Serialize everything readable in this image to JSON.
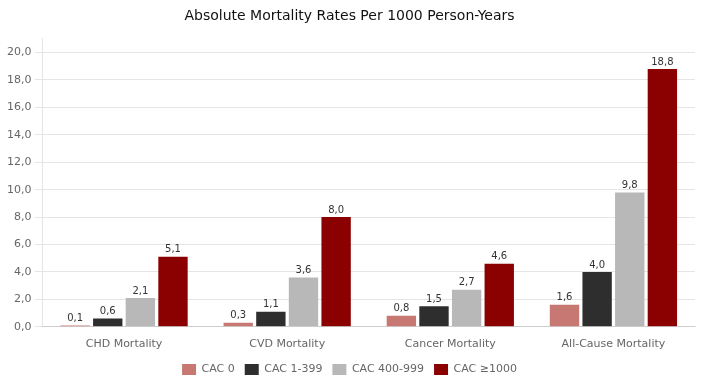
{
  "chart_data": {
    "type": "bar",
    "title": "Absolute Mortality Rates Per 1000 Person-Years",
    "categories": [
      "CHD Mortality",
      "CVD Mortality",
      "Cancer Mortality",
      "All-Cause Mortality"
    ],
    "series": [
      {
        "name": "CAC 0",
        "color": "#c87872",
        "values": [
          0.1,
          0.3,
          0.8,
          1.6
        ],
        "value_labels": [
          "0,1",
          "0,3",
          "0,8",
          "1,6"
        ]
      },
      {
        "name": "CAC 1-399",
        "color": "#2e2e2e",
        "values": [
          0.6,
          1.1,
          1.5,
          4.0
        ],
        "value_labels": [
          "0,6",
          "1,1",
          "1,5",
          "4,0"
        ]
      },
      {
        "name": "CAC 400-999",
        "color": "#b8b8b8",
        "values": [
          2.1,
          3.6,
          2.7,
          9.8
        ],
        "value_labels": [
          "2,1",
          "3,6",
          "2,7",
          "9,8"
        ]
      },
      {
        "name": "CAC ≥1000",
        "color": "#8b0000",
        "values": [
          5.1,
          8.0,
          4.6,
          18.8
        ],
        "value_labels": [
          "5,1",
          "8,0",
          "4,6",
          "18,8"
        ]
      }
    ],
    "ylim": [
      0,
      21.0
    ],
    "yticks": [
      {
        "value": 0.0,
        "label": "0,0"
      },
      {
        "value": 2.0,
        "label": "2,0"
      },
      {
        "value": 4.0,
        "label": "4,0"
      },
      {
        "value": 6.0,
        "label": "6,0"
      },
      {
        "value": 8.0,
        "label": "8,0"
      },
      {
        "value": 10.0,
        "label": "10,0"
      },
      {
        "value": 12.0,
        "label": "12,0"
      },
      {
        "value": 14.0,
        "label": "14,0"
      },
      {
        "value": 16.0,
        "label": "16,0"
      },
      {
        "value": 18.0,
        "label": "18,0"
      },
      {
        "value": 20.0,
        "label": "20,0"
      }
    ],
    "grid": true,
    "legend": "bottom",
    "data_labels": true
  }
}
